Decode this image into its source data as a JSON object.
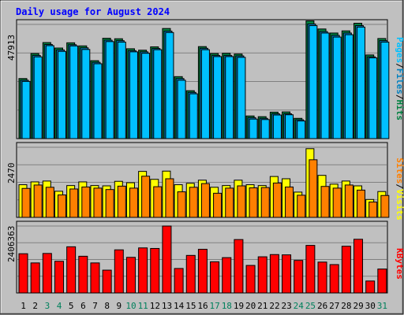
{
  "title": "Daily usage for August 2024",
  "colors": {
    "background": "#c0c0c0",
    "title": "#0000ff",
    "hits": "#008040",
    "files": "#0080c0",
    "pages": "#00c0ff",
    "visits": "#ffff00",
    "sites": "#ff8000",
    "kbytes": "#ff0000",
    "weekend_day": "#00805c",
    "weekday_day": "#000000"
  },
  "chart_data": [
    {
      "type": "bar",
      "panel": "hits-files-pages",
      "max_label": "47913",
      "ylim": [
        0,
        47913
      ],
      "legend": [
        "Pages",
        "/",
        "Files",
        "/",
        "Hits"
      ],
      "categories": [
        "1",
        "2",
        "3",
        "4",
        "5",
        "6",
        "7",
        "8",
        "9",
        "10",
        "11",
        "12",
        "13",
        "14",
        "15",
        "16",
        "17",
        "18",
        "19",
        "20",
        "21",
        "22",
        "23",
        "24",
        "25",
        "26",
        "27",
        "28",
        "29",
        "30",
        "31"
      ],
      "series": [
        {
          "name": "Hits",
          "values": [
            25200,
            35700,
            40300,
            38000,
            40200,
            38900,
            32700,
            42100,
            41900,
            37700,
            37100,
            38500,
            46200,
            26000,
            20100,
            38600,
            35700,
            35800,
            35500,
            9500,
            9200,
            11100,
            11200,
            8500,
            49400,
            46000,
            44300,
            45200,
            48400,
            35100,
            42000
          ]
        },
        {
          "name": "Files",
          "values": [
            24500,
            34900,
            39500,
            37200,
            39400,
            38100,
            32000,
            41300,
            41100,
            36900,
            36400,
            37800,
            45100,
            25200,
            19400,
            37900,
            34900,
            34900,
            34700,
            8800,
            8500,
            10400,
            10400,
            7900,
            48100,
            44900,
            43300,
            44300,
            47400,
            34300,
            41100
          ]
        },
        {
          "name": "Pages",
          "values": [
            24000,
            34300,
            39000,
            36600,
            38900,
            37400,
            31400,
            40700,
            40500,
            36400,
            35800,
            37300,
            44500,
            24500,
            18800,
            37300,
            34400,
            34400,
            34100,
            8200,
            8000,
            9900,
            10000,
            7400,
            47400,
            44300,
            42600,
            43600,
            46800,
            33900,
            40500
          ]
        }
      ]
    },
    {
      "type": "bar",
      "panel": "visits-sites",
      "max_label": "2470",
      "ylim": [
        0,
        2470
      ],
      "legend": [
        "Sites",
        "/",
        "Visits"
      ],
      "categories": [
        "1",
        "2",
        "3",
        "4",
        "5",
        "6",
        "7",
        "8",
        "9",
        "10",
        "11",
        "12",
        "13",
        "14",
        "15",
        "16",
        "17",
        "18",
        "19",
        "20",
        "21",
        "22",
        "23",
        "24",
        "25",
        "26",
        "27",
        "28",
        "29",
        "30",
        "31"
      ],
      "series": [
        {
          "name": "Visits",
          "values": [
            1150,
            1250,
            1280,
            920,
            1120,
            1250,
            1120,
            1110,
            1270,
            1220,
            1620,
            1340,
            1630,
            1150,
            1200,
            1310,
            1060,
            1120,
            1310,
            1150,
            1120,
            1440,
            1360,
            890,
            2420,
            1480,
            1170,
            1280,
            1110,
            630,
            910
          ]
        },
        {
          "name": "Sites",
          "values": [
            1020,
            1140,
            1060,
            790,
            1000,
            1070,
            1030,
            980,
            1100,
            1030,
            1450,
            1080,
            1360,
            900,
            1060,
            1190,
            850,
            1030,
            1110,
            1040,
            1050,
            1210,
            1070,
            780,
            2030,
            1090,
            1030,
            1140,
            960,
            540,
            770
          ]
        }
      ]
    },
    {
      "type": "bar",
      "panel": "kbytes",
      "max_label": "2406363",
      "ylim": [
        0,
        2406363
      ],
      "legend": [
        "KBytes"
      ],
      "categories": [
        "1",
        "2",
        "3",
        "4",
        "5",
        "6",
        "7",
        "8",
        "9",
        "10",
        "11",
        "12",
        "13",
        "14",
        "15",
        "16",
        "17",
        "18",
        "19",
        "20",
        "21",
        "22",
        "23",
        "24",
        "25",
        "26",
        "27",
        "28",
        "29",
        "30",
        "31"
      ],
      "series": [
        {
          "name": "KBytes",
          "values": [
            1410000,
            1080000,
            1420000,
            1140000,
            1660000,
            1320000,
            1080000,
            820000,
            1550000,
            1280000,
            1620000,
            1600000,
            2406000,
            880000,
            1350000,
            1570000,
            1120000,
            1270000,
            1920000,
            990000,
            1300000,
            1380000,
            1370000,
            1170000,
            1710000,
            1110000,
            1020000,
            1680000,
            1930000,
            430000,
            860000
          ]
        }
      ]
    }
  ]
}
